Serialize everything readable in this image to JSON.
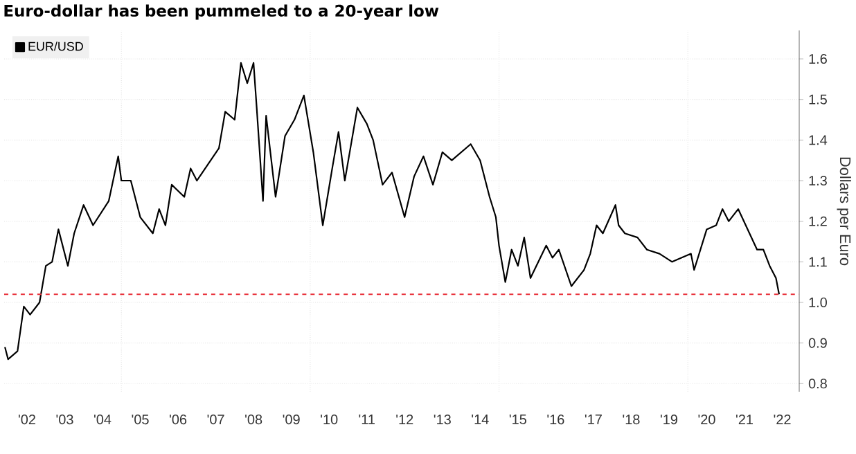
{
  "chart_data": {
    "type": "line",
    "title": "Euro-dollar has been pummeled to a 20-year low",
    "ylabel": "Dollars per Euro",
    "xlim": [
      "2001-11-24",
      "2022-12-13"
    ],
    "ylim": [
      0.78,
      1.67
    ],
    "xticks": [
      {
        "value": "2002-07",
        "label": "'02"
      },
      {
        "value": "2003-07",
        "label": "'03"
      },
      {
        "value": "2004-07",
        "label": "'04"
      },
      {
        "value": "2005-07",
        "label": "'05"
      },
      {
        "value": "2006-07",
        "label": "'06"
      },
      {
        "value": "2007-07",
        "label": "'07"
      },
      {
        "value": "2008-07",
        "label": "'08"
      },
      {
        "value": "2009-07",
        "label": "'09"
      },
      {
        "value": "2010-07",
        "label": "'10"
      },
      {
        "value": "2011-07",
        "label": "'11"
      },
      {
        "value": "2012-07",
        "label": "'12"
      },
      {
        "value": "2013-07",
        "label": "'13"
      },
      {
        "value": "2014-07",
        "label": "'14"
      },
      {
        "value": "2015-07",
        "label": "'15"
      },
      {
        "value": "2016-07",
        "label": "'16"
      },
      {
        "value": "2017-07",
        "label": "'17"
      },
      {
        "value": "2018-07",
        "label": "'18"
      },
      {
        "value": "2019-07",
        "label": "'19"
      },
      {
        "value": "2020-07",
        "label": "'20"
      },
      {
        "value": "2021-07",
        "label": "'21"
      },
      {
        "value": "2022-07",
        "label": "'22"
      },
      {
        "value": "2005",
        "label": null
      },
      {
        "value": "2010",
        "label": null
      },
      {
        "value": "2015",
        "label": null
      },
      {
        "value": "2020",
        "label": null
      }
    ],
    "yticks": [
      0.8,
      0.9,
      {
        "value": 1.0,
        "label": "1.0"
      },
      1.1,
      1.2,
      1.3,
      1.4,
      1.5,
      1.6
    ],
    "grid": true,
    "legend": "top left",
    "marker": "none",
    "line_style": "solid",
    "ref_lines": [
      {
        "axis": "y",
        "value": 1.02,
        "color": "#e8303a",
        "line_style": "dashed"
      }
    ],
    "series": [
      {
        "name": "EUR/USD",
        "color": "#000000",
        "x": [
          "2001-12",
          "2002-01",
          "2002-04",
          "2002-06",
          "2002-08",
          "2002-11",
          "2003-01",
          "2003-03",
          "2003-05",
          "2003-08",
          "2003-10",
          "2004-01",
          "2004-04",
          "2004-09",
          "2004-12",
          "2005-01",
          "2005-04",
          "2005-07",
          "2005-11",
          "2006-01",
          "2006-03",
          "2006-05",
          "2006-09",
          "2006-11",
          "2007-01",
          "2007-08",
          "2007-10",
          "2008-01",
          "2008-03",
          "2008-05",
          "2008-07",
          "2008-08",
          "2008-10",
          "2008-11",
          "2009-02",
          "2009-05",
          "2009-08",
          "2009-11",
          "2010-02",
          "2010-05",
          "2010-08",
          "2010-10",
          "2010-12",
          "2011-04",
          "2011-07",
          "2011-09",
          "2011-12",
          "2012-03",
          "2012-07",
          "2012-10",
          "2013-01",
          "2013-04",
          "2013-07",
          "2013-10",
          "2014-04",
          "2014-07",
          "2014-10",
          "2014-12",
          "2015-01",
          "2015-03",
          "2015-05",
          "2015-07",
          "2015-09",
          "2015-11",
          "2016-04",
          "2016-06",
          "2016-08",
          "2016-12",
          "2017-04",
          "2017-06",
          "2017-08",
          "2017-10",
          "2018-02",
          "2018-03",
          "2018-05",
          "2018-09",
          "2018-12",
          "2019-04",
          "2019-08",
          "2020-02",
          "2020-03",
          "2020-07",
          "2020-10",
          "2020-12",
          "2021-02",
          "2021-05",
          "2021-08",
          "2021-11",
          "2022-01",
          "2022-03",
          "2022-05",
          "2022-06"
        ],
        "values": [
          0.89,
          0.86,
          0.88,
          0.99,
          0.97,
          1.0,
          1.09,
          1.1,
          1.18,
          1.09,
          1.17,
          1.24,
          1.19,
          1.25,
          1.36,
          1.3,
          1.3,
          1.21,
          1.17,
          1.23,
          1.19,
          1.29,
          1.26,
          1.33,
          1.3,
          1.38,
          1.47,
          1.45,
          1.59,
          1.54,
          1.59,
          1.48,
          1.25,
          1.46,
          1.26,
          1.41,
          1.45,
          1.51,
          1.37,
          1.19,
          1.33,
          1.42,
          1.3,
          1.48,
          1.44,
          1.4,
          1.29,
          1.32,
          1.21,
          1.31,
          1.36,
          1.29,
          1.37,
          1.35,
          1.39,
          1.35,
          1.26,
          1.21,
          1.14,
          1.05,
          1.13,
          1.09,
          1.16,
          1.06,
          1.14,
          1.11,
          1.13,
          1.04,
          1.08,
          1.12,
          1.19,
          1.17,
          1.24,
          1.19,
          1.17,
          1.16,
          1.13,
          1.12,
          1.1,
          1.12,
          1.08,
          1.18,
          1.19,
          1.23,
          1.2,
          1.23,
          1.18,
          1.13,
          1.13,
          1.09,
          1.06,
          1.02
        ]
      }
    ]
  }
}
